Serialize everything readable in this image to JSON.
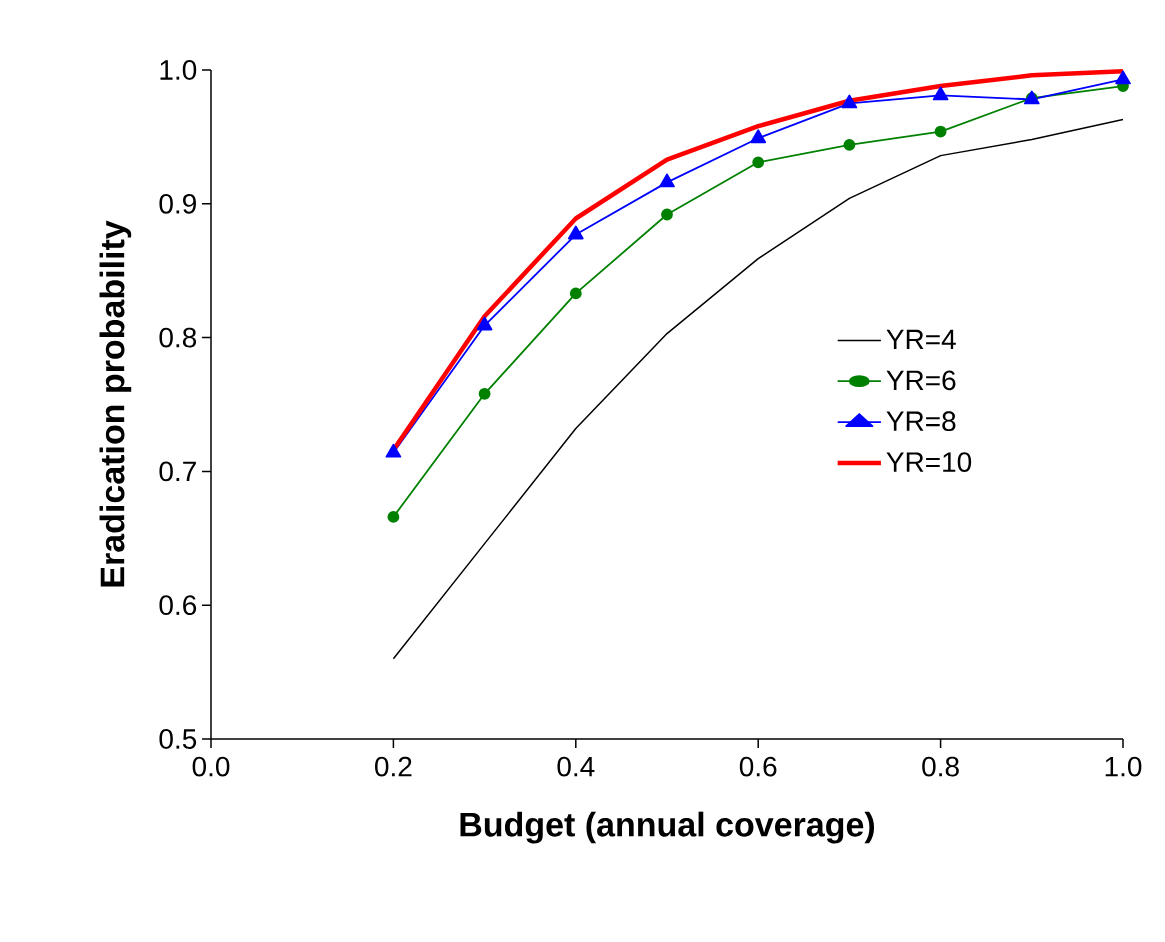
{
  "chart_data": {
    "type": "line",
    "xlabel": "Budget (annual coverage)",
    "ylabel": "Eradication probability",
    "x": [
      0.2,
      0.3,
      0.4,
      0.5,
      0.6,
      0.7,
      0.8,
      0.9,
      1.0
    ],
    "series": [
      {
        "name": "YR=4",
        "color": "#000000",
        "marker": "none",
        "values": [
          0.56,
          0.646,
          0.732,
          0.803,
          0.859,
          0.904,
          0.936,
          0.948,
          0.963
        ]
      },
      {
        "name": "YR=6",
        "color": "#008000",
        "marker": "circle",
        "values": [
          0.666,
          0.758,
          0.833,
          0.892,
          0.931,
          0.944,
          0.954,
          0.979,
          0.988
        ]
      },
      {
        "name": "YR=8",
        "color": "#0000ff",
        "marker": "triangle",
        "values": [
          0.714,
          0.809,
          0.877,
          0.916,
          0.949,
          0.975,
          0.981,
          0.978,
          0.993
        ]
      },
      {
        "name": "YR=10",
        "color": "#ff0000",
        "marker": "none",
        "values": [
          0.716,
          0.816,
          0.889,
          0.933,
          0.958,
          0.977,
          0.988,
          0.996,
          0.999
        ]
      }
    ],
    "xlim": [
      0,
      1
    ],
    "ylim": [
      0.5,
      1
    ],
    "xticks": [
      {
        "value": 0,
        "label": "0.0"
      },
      0.2,
      0.4,
      0.6,
      0.8,
      {
        "value": 1,
        "label": "1.0"
      }
    ],
    "yticks": [
      0.5,
      0.6,
      0.7,
      0.8,
      0.9,
      {
        "value": 1,
        "label": "1.0"
      }
    ],
    "grid": false,
    "legend": "right"
  }
}
